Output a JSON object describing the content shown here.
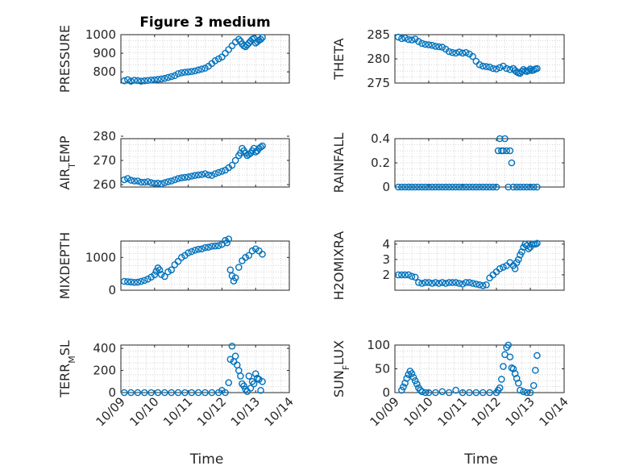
{
  "chart_data": [
    {
      "type": "scatter",
      "title": "Figure 3 medium",
      "ylabel": "PRESSURE",
      "xlabel": "",
      "ylim": [
        740,
        1000
      ],
      "yticks": [
        800,
        900,
        1000
      ],
      "ytick_labels": [
        "800",
        "900",
        "1000"
      ],
      "xlim": [
        0,
        5
      ],
      "xticks": [
        0,
        1,
        2,
        3,
        4,
        5
      ],
      "xtick_labels": [],
      "x": [
        0.1,
        0.2,
        0.3,
        0.4,
        0.5,
        0.6,
        0.7,
        0.8,
        0.9,
        1.0,
        1.1,
        1.2,
        1.3,
        1.4,
        1.5,
        1.6,
        1.7,
        1.8,
        1.9,
        2.0,
        2.1,
        2.2,
        2.3,
        2.4,
        2.5,
        2.6,
        2.7,
        2.8,
        2.9,
        3.0,
        3.1,
        3.2,
        3.3,
        3.4,
        3.5,
        3.55,
        3.6,
        3.65,
        3.7,
        3.75,
        3.8,
        3.85,
        3.9,
        3.95,
        4.0,
        4.05,
        4.1,
        4.15,
        4.2
      ],
      "y": [
        752,
        758,
        750,
        755,
        753,
        750,
        752,
        754,
        756,
        757,
        760,
        762,
        765,
        770,
        775,
        780,
        790,
        795,
        798,
        800,
        802,
        805,
        810,
        815,
        820,
        830,
        845,
        860,
        870,
        880,
        900,
        920,
        940,
        960,
        975,
        965,
        950,
        940,
        935,
        945,
        955,
        965,
        975,
        980,
        955,
        962,
        970,
        975,
        985
      ]
    },
    {
      "type": "scatter",
      "title": "",
      "ylabel": "THETA",
      "xlabel": "",
      "ylim": [
        275,
        285
      ],
      "yticks": [
        275,
        280,
        285
      ],
      "ytick_labels": [
        "275",
        "280",
        "285"
      ],
      "xlim": [
        0,
        5
      ],
      "xticks": [
        0,
        1,
        2,
        3,
        4,
        5
      ],
      "xtick_labels": [],
      "x": [
        0.1,
        0.2,
        0.3,
        0.4,
        0.5,
        0.6,
        0.7,
        0.8,
        0.9,
        1.0,
        1.1,
        1.2,
        1.3,
        1.4,
        1.5,
        1.6,
        1.7,
        1.8,
        1.9,
        2.0,
        2.1,
        2.2,
        2.3,
        2.4,
        2.5,
        2.6,
        2.7,
        2.8,
        2.9,
        3.0,
        3.1,
        3.2,
        3.3,
        3.4,
        3.5,
        3.55,
        3.6,
        3.65,
        3.7,
        3.75,
        3.8,
        3.85,
        3.9,
        3.95,
        4.0,
        4.05,
        4.1,
        4.15,
        4.2
      ],
      "y": [
        284.5,
        284.2,
        284.3,
        284.0,
        283.9,
        284.1,
        283.6,
        283.2,
        283.0,
        282.9,
        282.8,
        282.6,
        282.5,
        282.4,
        282.0,
        281.5,
        281.3,
        281.2,
        281.4,
        281.2,
        281.3,
        281.0,
        280.5,
        279.5,
        278.8,
        278.5,
        278.4,
        278.3,
        278.0,
        277.9,
        278.2,
        278.5,
        278.0,
        277.8,
        278.0,
        277.6,
        277.3,
        277.1,
        277.0,
        277.4,
        277.8,
        277.5,
        277.4,
        277.6,
        277.9,
        277.6,
        277.7,
        277.9,
        278.0
      ]
    },
    {
      "type": "scatter",
      "title": "",
      "ylabel": "AIR_TEMP",
      "xlabel": "",
      "ylim": [
        259,
        279
      ],
      "yticks": [
        260,
        270,
        280
      ],
      "ytick_labels": [
        "260",
        "270",
        "280"
      ],
      "xlim": [
        0,
        5
      ],
      "xticks": [
        0,
        1,
        2,
        3,
        4,
        5
      ],
      "xtick_labels": [],
      "x": [
        0.1,
        0.2,
        0.3,
        0.4,
        0.5,
        0.6,
        0.7,
        0.8,
        0.9,
        1.0,
        1.1,
        1.2,
        1.3,
        1.4,
        1.5,
        1.6,
        1.7,
        1.8,
        1.9,
        2.0,
        2.1,
        2.2,
        2.3,
        2.4,
        2.5,
        2.6,
        2.7,
        2.8,
        2.9,
        3.0,
        3.1,
        3.2,
        3.3,
        3.4,
        3.5,
        3.55,
        3.6,
        3.65,
        3.7,
        3.75,
        3.8,
        3.85,
        3.9,
        3.95,
        4.0,
        4.05,
        4.1,
        4.15,
        4.2
      ],
      "y": [
        262,
        262.5,
        261.8,
        261.5,
        261.5,
        261,
        261,
        261.2,
        260.8,
        260.5,
        260.6,
        260.4,
        260.8,
        261.2,
        261.5,
        262,
        262.5,
        262.8,
        263,
        263.2,
        263.5,
        263.8,
        264,
        264.2,
        264.5,
        264,
        263.8,
        264.5,
        265,
        265.5,
        266,
        267,
        268,
        270,
        272,
        273,
        275,
        274,
        273,
        272,
        272.5,
        273,
        274,
        275,
        273.5,
        274,
        275,
        275.5,
        276
      ]
    },
    {
      "type": "scatter",
      "title": "",
      "ylabel": "RAINFALL",
      "xlabel": "",
      "ylim": [
        0,
        0.4
      ],
      "yticks": [
        0,
        0.2,
        0.4
      ],
      "ytick_labels": [
        "0",
        "0.2",
        "0.4"
      ],
      "xlim": [
        0,
        5
      ],
      "xticks": [
        0,
        1,
        2,
        3,
        4,
        5
      ],
      "xtick_labels": [],
      "x": [
        0.1,
        0.2,
        0.3,
        0.4,
        0.5,
        0.6,
        0.7,
        0.8,
        0.9,
        1.0,
        1.1,
        1.2,
        1.3,
        1.4,
        1.5,
        1.6,
        1.7,
        1.8,
        1.9,
        2.0,
        2.1,
        2.2,
        2.3,
        2.4,
        2.5,
        2.6,
        2.7,
        2.8,
        2.9,
        3.0,
        3.05,
        3.1,
        3.15,
        3.2,
        3.25,
        3.3,
        3.35,
        3.4,
        3.45,
        3.5,
        3.6,
        3.7,
        3.8,
        3.9,
        4.0,
        4.1,
        4.2
      ],
      "y": [
        0,
        0,
        0,
        0,
        0,
        0,
        0,
        0,
        0,
        0,
        0,
        0,
        0,
        0,
        0,
        0,
        0,
        0,
        0,
        0,
        0,
        0,
        0,
        0,
        0,
        0,
        0,
        0,
        0,
        0,
        0.3,
        0.4,
        0.3,
        0.3,
        0.4,
        0.3,
        0,
        0.3,
        0.2,
        0,
        0,
        0,
        0,
        0,
        0,
        0,
        0
      ]
    },
    {
      "type": "scatter",
      "title": "",
      "ylabel": "MIXDEPTH",
      "xlabel": "",
      "ylim": [
        0,
        1500
      ],
      "yticks": [
        0,
        1000
      ],
      "ytick_labels": [
        "0",
        "1000"
      ],
      "xlim": [
        0,
        5
      ],
      "xticks": [
        0,
        1,
        2,
        3,
        4,
        5
      ],
      "xtick_labels": [],
      "x": [
        0.1,
        0.2,
        0.3,
        0.4,
        0.5,
        0.6,
        0.7,
        0.8,
        0.9,
        1.0,
        1.05,
        1.1,
        1.15,
        1.2,
        1.3,
        1.4,
        1.5,
        1.6,
        1.7,
        1.8,
        1.9,
        2.0,
        2.1,
        2.2,
        2.3,
        2.4,
        2.5,
        2.6,
        2.7,
        2.8,
        2.9,
        3.0,
        3.1,
        3.15,
        3.2,
        3.25,
        3.3,
        3.35,
        3.4,
        3.5,
        3.6,
        3.7,
        3.8,
        3.9,
        4.0,
        4.1,
        4.2
      ],
      "y": [
        270,
        260,
        250,
        240,
        245,
        270,
        300,
        340,
        400,
        470,
        580,
        680,
        620,
        480,
        420,
        560,
        620,
        780,
        880,
        1000,
        1060,
        1140,
        1180,
        1220,
        1250,
        1260,
        1300,
        1310,
        1340,
        1350,
        1360,
        1400,
        1520,
        1450,
        1560,
        620,
        440,
        280,
        380,
        700,
        900,
        1000,
        1060,
        1200,
        1260,
        1200,
        1100
      ]
    },
    {
      "type": "scatter",
      "title": "",
      "ylabel": "H2OMIXRA",
      "xlabel": "",
      "ylim": [
        1,
        4.2
      ],
      "yticks": [
        2,
        3,
        4
      ],
      "ytick_labels": [
        "2",
        "3",
        "4"
      ],
      "xlim": [
        0,
        5
      ],
      "xticks": [
        0,
        1,
        2,
        3,
        4,
        5
      ],
      "xtick_labels": [],
      "x": [
        0.1,
        0.2,
        0.3,
        0.4,
        0.5,
        0.6,
        0.7,
        0.8,
        0.9,
        1.0,
        1.1,
        1.2,
        1.3,
        1.4,
        1.5,
        1.6,
        1.7,
        1.8,
        1.9,
        2.0,
        2.1,
        2.2,
        2.3,
        2.4,
        2.5,
        2.6,
        2.7,
        2.8,
        2.9,
        3.0,
        3.1,
        3.2,
        3.3,
        3.4,
        3.5,
        3.55,
        3.6,
        3.65,
        3.7,
        3.75,
        3.8,
        3.85,
        3.9,
        3.95,
        4.0,
        4.05,
        4.1,
        4.15,
        4.2
      ],
      "y": [
        2.0,
        2.0,
        2.0,
        2.0,
        1.9,
        1.85,
        1.5,
        1.45,
        1.5,
        1.5,
        1.45,
        1.5,
        1.45,
        1.5,
        1.45,
        1.5,
        1.5,
        1.5,
        1.45,
        1.4,
        1.5,
        1.5,
        1.45,
        1.4,
        1.35,
        1.3,
        1.35,
        1.8,
        2.0,
        2.2,
        2.4,
        2.5,
        2.6,
        2.8,
        2.6,
        2.4,
        2.8,
        3.0,
        3.3,
        3.5,
        3.8,
        4.0,
        3.9,
        3.7,
        3.8,
        4.0,
        4.0,
        4.0,
        4.05
      ]
    },
    {
      "type": "scatter",
      "title": "",
      "ylabel": "TERR_MSL",
      "xlabel": "Time",
      "ylim": [
        0,
        430
      ],
      "yticks": [
        0,
        200,
        400
      ],
      "ytick_labels": [
        "0",
        "200",
        "400"
      ],
      "xlim": [
        0,
        5
      ],
      "xticks": [
        0,
        1,
        2,
        3,
        4,
        5
      ],
      "xtick_labels": [
        "10/09",
        "10/10",
        "10/11",
        "10/12",
        "10/13",
        "10/14"
      ],
      "x": [
        0.1,
        0.3,
        0.5,
        0.7,
        0.9,
        1.1,
        1.3,
        1.5,
        1.7,
        1.9,
        2.1,
        2.3,
        2.5,
        2.7,
        2.9,
        3.0,
        3.1,
        3.2,
        3.25,
        3.3,
        3.35,
        3.4,
        3.45,
        3.5,
        3.55,
        3.6,
        3.65,
        3.7,
        3.75,
        3.8,
        3.85,
        3.9,
        3.95,
        4.0,
        4.05,
        4.1,
        4.15,
        4.2
      ],
      "y": [
        0,
        0,
        0,
        0,
        0,
        0,
        0,
        0,
        0,
        0,
        0,
        0,
        0,
        0,
        0,
        20,
        0,
        90,
        300,
        420,
        280,
        330,
        250,
        200,
        150,
        80,
        60,
        30,
        10,
        150,
        40,
        100,
        80,
        170,
        130,
        120,
        20,
        100
      ]
    },
    {
      "type": "scatter",
      "title": "",
      "ylabel": "SUN_FLUX",
      "xlabel": "Time",
      "ylim": [
        0,
        100
      ],
      "yticks": [
        0,
        50,
        100
      ],
      "ytick_labels": [
        "0",
        "50",
        "100"
      ],
      "xlim": [
        0,
        5
      ],
      "xticks": [
        0,
        1,
        2,
        3,
        4,
        5
      ],
      "xtick_labels": [
        "10/09",
        "10/10",
        "10/11",
        "10/12",
        "10/13",
        "10/14"
      ],
      "x": [
        0.2,
        0.25,
        0.3,
        0.35,
        0.4,
        0.45,
        0.5,
        0.55,
        0.6,
        0.65,
        0.7,
        0.75,
        0.8,
        0.9,
        1.0,
        1.2,
        1.4,
        1.6,
        1.8,
        2.0,
        2.2,
        2.4,
        2.6,
        2.8,
        3.0,
        3.05,
        3.1,
        3.15,
        3.2,
        3.25,
        3.3,
        3.35,
        3.4,
        3.45,
        3.5,
        3.55,
        3.6,
        3.65,
        3.7,
        3.8,
        3.9,
        4.0,
        4.1,
        4.15,
        4.2
      ],
      "y": [
        5,
        12,
        20,
        30,
        38,
        45,
        40,
        32,
        25,
        18,
        10,
        5,
        2,
        0,
        0,
        0,
        2,
        0,
        5,
        0,
        0,
        0,
        0,
        0,
        0,
        5,
        10,
        28,
        55,
        80,
        95,
        100,
        75,
        52,
        50,
        40,
        30,
        20,
        5,
        2,
        0,
        0,
        15,
        47,
        78
      ]
    }
  ]
}
